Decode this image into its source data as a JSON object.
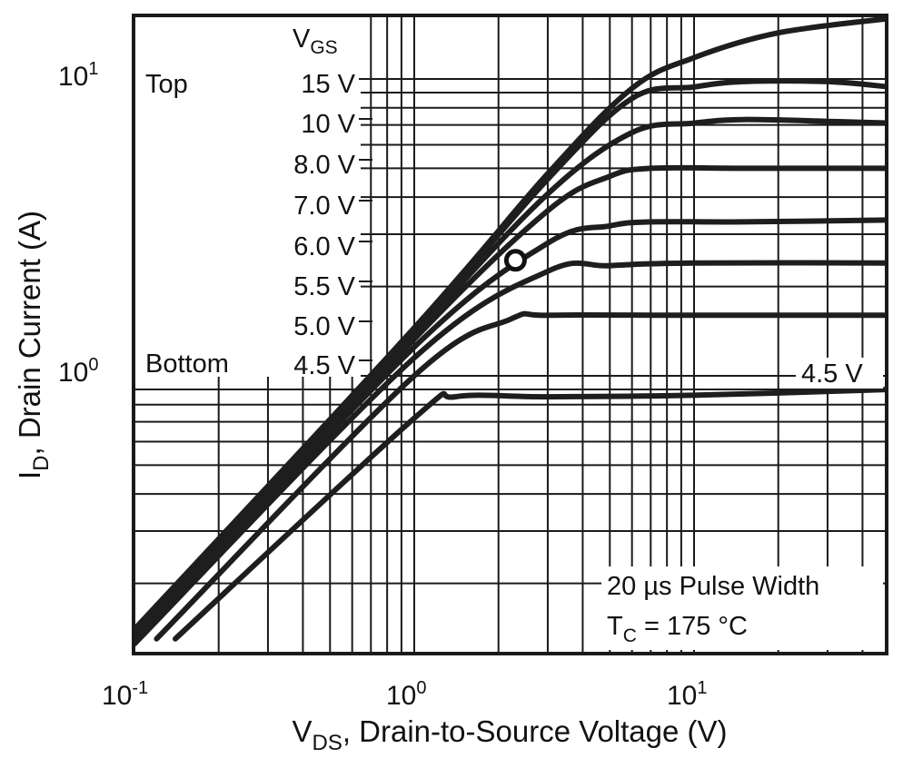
{
  "chart_data": {
    "type": "line",
    "xscale": "log",
    "yscale": "log",
    "xlim": [
      0.1,
      50
    ],
    "ylim": [
      0.13,
      16
    ],
    "grid": true,
    "xlabel": {
      "main": "V",
      "sub": "DS",
      "rest": ", Drain-to-Source Voltage (V)"
    },
    "ylabel": {
      "main": "I",
      "sub": "D",
      "rest": ", Drain Current (A)"
    },
    "xticks": [
      {
        "value": 0.1,
        "base": "10",
        "exp": "-1"
      },
      {
        "value": 1,
        "base": "10",
        "exp": "0"
      },
      {
        "value": 10,
        "base": "10",
        "exp": "1"
      }
    ],
    "yticks": [
      {
        "value": 1,
        "base": "10",
        "exp": "0"
      },
      {
        "value": 10,
        "base": "10",
        "exp": "1"
      }
    ],
    "legend": {
      "header": {
        "main": "V",
        "sub": "GS"
      },
      "top_label": "Top",
      "bottom_label": "Bottom",
      "entries": [
        "15 V",
        "10 V",
        "8.0 V",
        "7.0 V",
        "6.0 V",
        "5.5 V",
        "5.0 V",
        "4.5 V"
      ]
    },
    "annotations": {
      "curve_label": "4.5 V",
      "pulse_width": "20 µs Pulse Width",
      "temperature": {
        "main": "T",
        "sub": "C",
        "rest": " = 175 °C"
      }
    },
    "series": [
      {
        "name": "15 V",
        "points": [
          [
            0.1,
            0.14
          ],
          [
            1,
            1.45
          ],
          [
            3,
            4.8
          ],
          [
            6,
            9.3
          ],
          [
            10,
            11.8
          ],
          [
            20,
            14.3
          ],
          [
            50,
            16
          ]
        ]
      },
      {
        "name": "10 V",
        "points": [
          [
            0.1,
            0.135
          ],
          [
            1,
            1.42
          ],
          [
            3,
            4.6
          ],
          [
            6,
            8.6
          ],
          [
            10,
            9.4
          ],
          [
            15,
            9.8
          ],
          [
            30,
            9.8
          ],
          [
            50,
            9.4
          ]
        ]
      },
      {
        "name": "8.0 V",
        "points": [
          [
            0.1,
            0.132
          ],
          [
            1,
            1.38
          ],
          [
            3,
            4.1
          ],
          [
            6,
            6.6
          ],
          [
            10,
            7.1
          ],
          [
            15,
            7.3
          ],
          [
            30,
            7.2
          ],
          [
            50,
            7.1
          ]
        ]
      },
      {
        "name": "7.0 V",
        "points": [
          [
            0.1,
            0.13
          ],
          [
            1,
            1.33
          ],
          [
            3,
            3.6
          ],
          [
            5,
            4.7
          ],
          [
            7,
            5.0
          ],
          [
            15,
            5.0
          ],
          [
            50,
            5.0
          ]
        ]
      },
      {
        "name": "6.0 V",
        "points": [
          [
            0.1,
            0.128
          ],
          [
            1,
            1.25
          ],
          [
            3,
            2.8
          ],
          [
            5,
            3.2
          ],
          [
            7,
            3.3
          ],
          [
            15,
            3.3
          ],
          [
            50,
            3.35
          ]
        ]
      },
      {
        "name": "5.5 V",
        "points": [
          [
            0.1,
            0.125
          ],
          [
            1,
            1.15
          ],
          [
            3,
            2.25
          ],
          [
            5,
            2.35
          ],
          [
            10,
            2.4
          ],
          [
            50,
            2.4
          ]
        ]
      },
      {
        "name": "5.0 V",
        "points": [
          [
            0.12,
            0.13
          ],
          [
            1,
            1.0
          ],
          [
            2.2,
            1.55
          ],
          [
            3,
            1.6
          ],
          [
            10,
            1.6
          ],
          [
            50,
            1.6
          ]
        ]
      },
      {
        "name": "4.5 V",
        "points": [
          [
            0.14,
            0.13
          ],
          [
            1,
            0.72
          ],
          [
            1.4,
            0.85
          ],
          [
            3,
            0.85
          ],
          [
            10,
            0.86
          ],
          [
            50,
            0.9
          ]
        ]
      }
    ],
    "marker": {
      "x": 2.3,
      "y": 2.45
    }
  }
}
